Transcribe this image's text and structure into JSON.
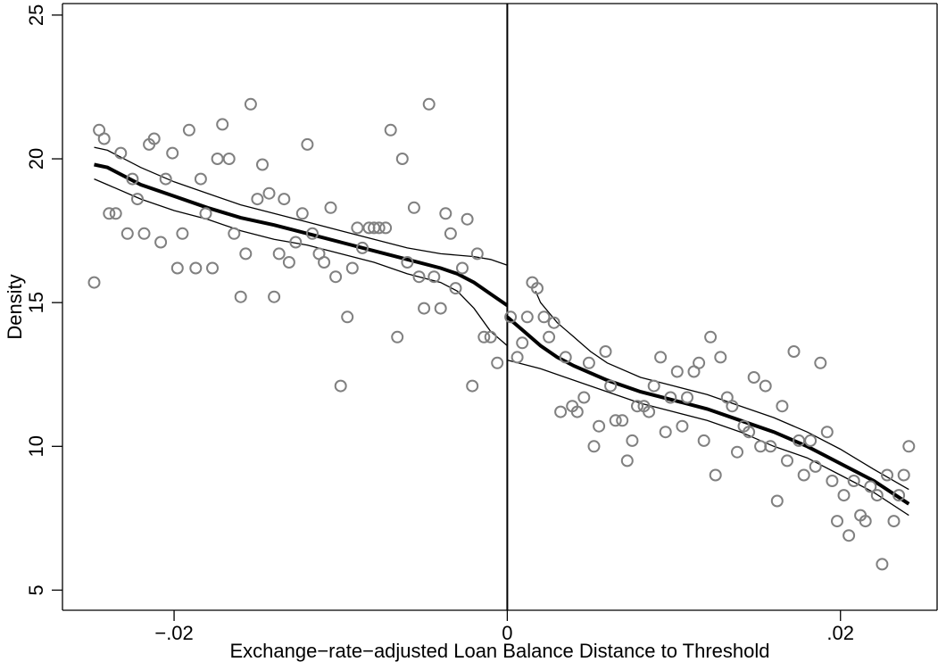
{
  "chart_data": {
    "type": "scatter",
    "title": "",
    "xlabel": "Exchange−rate−adjusted Loan Balance Distance to Threshold",
    "ylabel": "Density",
    "xlim": [
      -0.0267,
      0.0258
    ],
    "ylim": [
      4.3,
      25.4
    ],
    "x_ticks": [
      -0.02,
      0,
      0.02
    ],
    "x_tick_labels": [
      "−.02",
      "0",
      ".02"
    ],
    "y_ticks": [
      5,
      10,
      15,
      20,
      25
    ],
    "y_tick_labels": [
      "5",
      "10",
      "15",
      "20",
      "25"
    ],
    "threshold_x": 0,
    "grid": false,
    "legend": "none",
    "series": [
      {
        "type": "scatter",
        "marker": "hollow-circle",
        "color": "#808080",
        "points": [
          [
            -0.0248,
            15.7
          ],
          [
            -0.0245,
            21.0
          ],
          [
            -0.0242,
            20.7
          ],
          [
            -0.0239,
            18.1
          ],
          [
            -0.0235,
            18.1
          ],
          [
            -0.0232,
            20.2
          ],
          [
            -0.0228,
            17.4
          ],
          [
            -0.0225,
            19.3
          ],
          [
            -0.0222,
            18.6
          ],
          [
            -0.0218,
            17.4
          ],
          [
            -0.0215,
            20.5
          ],
          [
            -0.0212,
            20.7
          ],
          [
            -0.0208,
            17.1
          ],
          [
            -0.0205,
            19.3
          ],
          [
            -0.0201,
            20.2
          ],
          [
            -0.0198,
            16.2
          ],
          [
            -0.0195,
            17.4
          ],
          [
            -0.0191,
            21.0
          ],
          [
            -0.0187,
            16.2
          ],
          [
            -0.0184,
            19.3
          ],
          [
            -0.0181,
            18.1
          ],
          [
            -0.0177,
            16.2
          ],
          [
            -0.0174,
            20.0
          ],
          [
            -0.0171,
            21.2
          ],
          [
            -0.0167,
            20.0
          ],
          [
            -0.0164,
            17.4
          ],
          [
            -0.016,
            15.2
          ],
          [
            -0.0157,
            16.7
          ],
          [
            -0.0154,
            21.9
          ],
          [
            -0.015,
            18.6
          ],
          [
            -0.0147,
            19.8
          ],
          [
            -0.0143,
            18.8
          ],
          [
            -0.014,
            15.2
          ],
          [
            -0.0137,
            16.7
          ],
          [
            -0.0134,
            18.6
          ],
          [
            -0.0131,
            16.4
          ],
          [
            -0.0127,
            17.1
          ],
          [
            -0.0123,
            18.1
          ],
          [
            -0.012,
            20.5
          ],
          [
            -0.0117,
            17.4
          ],
          [
            -0.0113,
            16.7
          ],
          [
            -0.011,
            16.4
          ],
          [
            -0.0106,
            18.3
          ],
          [
            -0.0103,
            15.9
          ],
          [
            -0.01,
            12.1
          ],
          [
            -0.0096,
            14.5
          ],
          [
            -0.0093,
            16.2
          ],
          [
            -0.009,
            17.6
          ],
          [
            -0.0087,
            16.9
          ],
          [
            -0.0083,
            17.6
          ],
          [
            -0.008,
            17.6
          ],
          [
            -0.0077,
            17.6
          ],
          [
            -0.0073,
            17.6
          ],
          [
            -0.007,
            21.0
          ],
          [
            -0.0066,
            13.8
          ],
          [
            -0.0063,
            20.0
          ],
          [
            -0.006,
            16.4
          ],
          [
            -0.0056,
            18.3
          ],
          [
            -0.0053,
            15.9
          ],
          [
            -0.005,
            14.8
          ],
          [
            -0.0047,
            21.9
          ],
          [
            -0.0044,
            15.9
          ],
          [
            -0.004,
            14.8
          ],
          [
            -0.0037,
            18.1
          ],
          [
            -0.0034,
            17.4
          ],
          [
            -0.0031,
            15.5
          ],
          [
            -0.0027,
            16.2
          ],
          [
            -0.0024,
            17.9
          ],
          [
            -0.0021,
            12.1
          ],
          [
            -0.0018,
            16.7
          ],
          [
            -0.0014,
            13.8
          ],
          [
            -0.001,
            13.8
          ],
          [
            -0.0006,
            12.9
          ],
          [
            0.0002,
            14.5
          ],
          [
            0.0006,
            13.1
          ],
          [
            0.0009,
            13.6
          ],
          [
            0.0012,
            14.5
          ],
          [
            0.0015,
            15.7
          ],
          [
            0.0018,
            15.5
          ],
          [
            0.0022,
            14.5
          ],
          [
            0.0025,
            13.8
          ],
          [
            0.0028,
            14.3
          ],
          [
            0.0032,
            11.2
          ],
          [
            0.0035,
            13.1
          ],
          [
            0.0039,
            11.4
          ],
          [
            0.0042,
            11.2
          ],
          [
            0.0046,
            11.7
          ],
          [
            0.0049,
            12.9
          ],
          [
            0.0052,
            10.0
          ],
          [
            0.0055,
            10.7
          ],
          [
            0.0059,
            13.3
          ],
          [
            0.0062,
            12.1
          ],
          [
            0.0065,
            10.9
          ],
          [
            0.0069,
            10.9
          ],
          [
            0.0072,
            9.5
          ],
          [
            0.0075,
            10.2
          ],
          [
            0.0078,
            11.4
          ],
          [
            0.0082,
            11.4
          ],
          [
            0.0085,
            11.2
          ],
          [
            0.0088,
            12.1
          ],
          [
            0.0092,
            13.1
          ],
          [
            0.0095,
            10.5
          ],
          [
            0.0098,
            11.7
          ],
          [
            0.0102,
            12.6
          ],
          [
            0.0105,
            10.7
          ],
          [
            0.0108,
            11.7
          ],
          [
            0.0112,
            12.6
          ],
          [
            0.0115,
            12.9
          ],
          [
            0.0118,
            10.2
          ],
          [
            0.0122,
            13.8
          ],
          [
            0.0125,
            9.0
          ],
          [
            0.0128,
            13.1
          ],
          [
            0.0132,
            11.7
          ],
          [
            0.0135,
            11.4
          ],
          [
            0.0138,
            9.8
          ],
          [
            0.0142,
            10.7
          ],
          [
            0.0145,
            10.5
          ],
          [
            0.0148,
            12.4
          ],
          [
            0.0152,
            10.0
          ],
          [
            0.0155,
            12.1
          ],
          [
            0.0158,
            10.0
          ],
          [
            0.0162,
            8.1
          ],
          [
            0.0165,
            11.4
          ],
          [
            0.0168,
            9.5
          ],
          [
            0.0172,
            13.3
          ],
          [
            0.0175,
            10.2
          ],
          [
            0.0178,
            9.0
          ],
          [
            0.0182,
            10.2
          ],
          [
            0.0185,
            9.3
          ],
          [
            0.0188,
            12.9
          ],
          [
            0.0192,
            10.5
          ],
          [
            0.0195,
            8.8
          ],
          [
            0.0198,
            7.4
          ],
          [
            0.0202,
            8.3
          ],
          [
            0.0205,
            6.9
          ],
          [
            0.0208,
            8.8
          ],
          [
            0.0212,
            7.6
          ],
          [
            0.0215,
            7.4
          ],
          [
            0.0218,
            8.6
          ],
          [
            0.0222,
            8.3
          ],
          [
            0.0225,
            5.9
          ],
          [
            0.0228,
            9.0
          ],
          [
            0.0232,
            7.4
          ],
          [
            0.0235,
            8.3
          ],
          [
            0.0238,
            9.0
          ],
          [
            0.0241,
            10.0
          ]
        ]
      },
      {
        "type": "line",
        "role": "fit-left",
        "points": [
          [
            -0.0248,
            19.8
          ],
          [
            -0.024,
            19.7
          ],
          [
            -0.022,
            19.1
          ],
          [
            -0.02,
            18.7
          ],
          [
            -0.018,
            18.3
          ],
          [
            -0.016,
            17.95
          ],
          [
            -0.014,
            17.7
          ],
          [
            -0.012,
            17.4
          ],
          [
            -0.01,
            17.1
          ],
          [
            -0.008,
            16.8
          ],
          [
            -0.006,
            16.5
          ],
          [
            -0.004,
            16.2
          ],
          [
            -0.003,
            16.0
          ],
          [
            -0.002,
            15.7
          ],
          [
            -0.001,
            15.3
          ],
          [
            0.0,
            14.9
          ]
        ]
      },
      {
        "type": "line",
        "role": "ci-upper-left",
        "points": [
          [
            -0.0248,
            20.4
          ],
          [
            -0.024,
            20.3
          ],
          [
            -0.022,
            19.7
          ],
          [
            -0.02,
            19.2
          ],
          [
            -0.018,
            18.8
          ],
          [
            -0.016,
            18.4
          ],
          [
            -0.014,
            18.1
          ],
          [
            -0.012,
            17.8
          ],
          [
            -0.01,
            17.5
          ],
          [
            -0.008,
            17.2
          ],
          [
            -0.006,
            16.9
          ],
          [
            -0.004,
            16.7
          ],
          [
            -0.002,
            16.6
          ],
          [
            -0.001,
            16.5
          ],
          [
            0.0,
            16.3
          ]
        ]
      },
      {
        "type": "line",
        "role": "ci-lower-left",
        "points": [
          [
            -0.0248,
            19.3
          ],
          [
            -0.024,
            19.1
          ],
          [
            -0.022,
            18.6
          ],
          [
            -0.02,
            18.2
          ],
          [
            -0.018,
            17.9
          ],
          [
            -0.016,
            17.5
          ],
          [
            -0.014,
            17.2
          ],
          [
            -0.012,
            17.0
          ],
          [
            -0.01,
            16.7
          ],
          [
            -0.008,
            16.4
          ],
          [
            -0.006,
            16.0
          ],
          [
            -0.004,
            15.7
          ],
          [
            -0.003,
            15.4
          ],
          [
            -0.002,
            14.8
          ],
          [
            -0.001,
            14.0
          ],
          [
            0.0,
            13.5
          ]
        ]
      },
      {
        "type": "line",
        "role": "fit-right",
        "points": [
          [
            0.0,
            14.5
          ],
          [
            0.001,
            14.0
          ],
          [
            0.002,
            13.5
          ],
          [
            0.003,
            13.1
          ],
          [
            0.004,
            12.8
          ],
          [
            0.006,
            12.3
          ],
          [
            0.008,
            11.9
          ],
          [
            0.01,
            11.6
          ],
          [
            0.012,
            11.3
          ],
          [
            0.014,
            10.9
          ],
          [
            0.016,
            10.5
          ],
          [
            0.018,
            10.0
          ],
          [
            0.02,
            9.4
          ],
          [
            0.022,
            8.8
          ],
          [
            0.0241,
            8.0
          ]
        ]
      },
      {
        "type": "line",
        "role": "ci-upper-right",
        "points": [
          [
            0.0017,
            15.4
          ],
          [
            0.002,
            15.0
          ],
          [
            0.003,
            14.3
          ],
          [
            0.004,
            13.8
          ],
          [
            0.005,
            13.3
          ],
          [
            0.006,
            12.9
          ],
          [
            0.008,
            12.4
          ],
          [
            0.01,
            12.1
          ],
          [
            0.012,
            11.8
          ],
          [
            0.014,
            11.4
          ],
          [
            0.016,
            11.0
          ],
          [
            0.018,
            10.5
          ],
          [
            0.02,
            9.9
          ],
          [
            0.022,
            9.2
          ],
          [
            0.0241,
            8.5
          ]
        ]
      },
      {
        "type": "line",
        "role": "ci-lower-right",
        "points": [
          [
            0.0,
            13.0
          ],
          [
            0.002,
            12.7
          ],
          [
            0.004,
            12.3
          ],
          [
            0.006,
            11.9
          ],
          [
            0.008,
            11.5
          ],
          [
            0.01,
            11.2
          ],
          [
            0.012,
            10.9
          ],
          [
            0.014,
            10.5
          ],
          [
            0.016,
            10.0
          ],
          [
            0.018,
            9.6
          ],
          [
            0.02,
            9.0
          ],
          [
            0.022,
            8.4
          ],
          [
            0.0241,
            7.6
          ]
        ]
      }
    ]
  }
}
